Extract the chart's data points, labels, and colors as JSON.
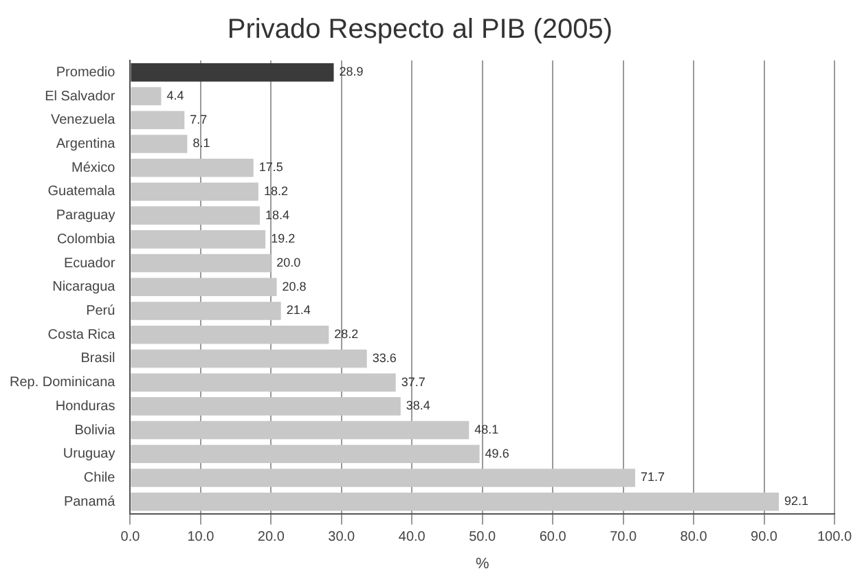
{
  "chart_data": {
    "type": "bar",
    "orientation": "horizontal",
    "title": "Privado Respecto al PIB (2005)",
    "xlabel": "%",
    "categories": [
      "Promedio",
      "El Salvador",
      "Venezuela",
      "Argentina",
      "México",
      "Guatemala",
      "Paraguay",
      "Colombia",
      "Ecuador",
      "Nicaragua",
      "Perú",
      "Costa Rica",
      "Brasil",
      "Rep. Dominicana",
      "Honduras",
      "Bolivia",
      "Uruguay",
      "Chile",
      "Panamá"
    ],
    "values": [
      28.9,
      4.4,
      7.7,
      8.1,
      17.5,
      18.2,
      18.4,
      19.2,
      20.0,
      20.8,
      21.4,
      28.2,
      33.6,
      37.7,
      38.4,
      48.1,
      49.6,
      71.7,
      92.1
    ],
    "value_labels": [
      "28.9",
      "4.4",
      "7.7",
      "8.1",
      "17.5",
      "18.2",
      "18.4",
      "19.2",
      "20.0",
      "20.8",
      "21.4",
      "28.2",
      "33.6",
      "37.7",
      "38.4",
      "48.1",
      "49.6",
      "71.7",
      "92.1"
    ],
    "colors": [
      "#3a3a3a",
      "#c8c8c8",
      "#c8c8c8",
      "#c8c8c8",
      "#c8c8c8",
      "#c8c8c8",
      "#c8c8c8",
      "#c8c8c8",
      "#c8c8c8",
      "#c8c8c8",
      "#c8c8c8",
      "#c8c8c8",
      "#c8c8c8",
      "#c8c8c8",
      "#c8c8c8",
      "#c8c8c8",
      "#c8c8c8",
      "#c8c8c8",
      "#c8c8c8"
    ],
    "xlim": [
      0,
      100
    ],
    "xticks": [
      {
        "value": 0,
        "label": "0.0"
      },
      {
        "value": 10,
        "label": "10.0"
      },
      {
        "value": 20,
        "label": "20.0"
      },
      {
        "value": 30,
        "label": "30.0"
      },
      {
        "value": 40,
        "label": "40.0"
      },
      {
        "value": 50,
        "label": "50.0"
      },
      {
        "value": 60,
        "label": "60.0"
      },
      {
        "value": 70,
        "label": "70.0"
      },
      {
        "value": 80,
        "label": "80.0"
      },
      {
        "value": 90,
        "label": "90.0"
      },
      {
        "value": 100,
        "label": "100.0"
      }
    ],
    "grid": "x"
  }
}
